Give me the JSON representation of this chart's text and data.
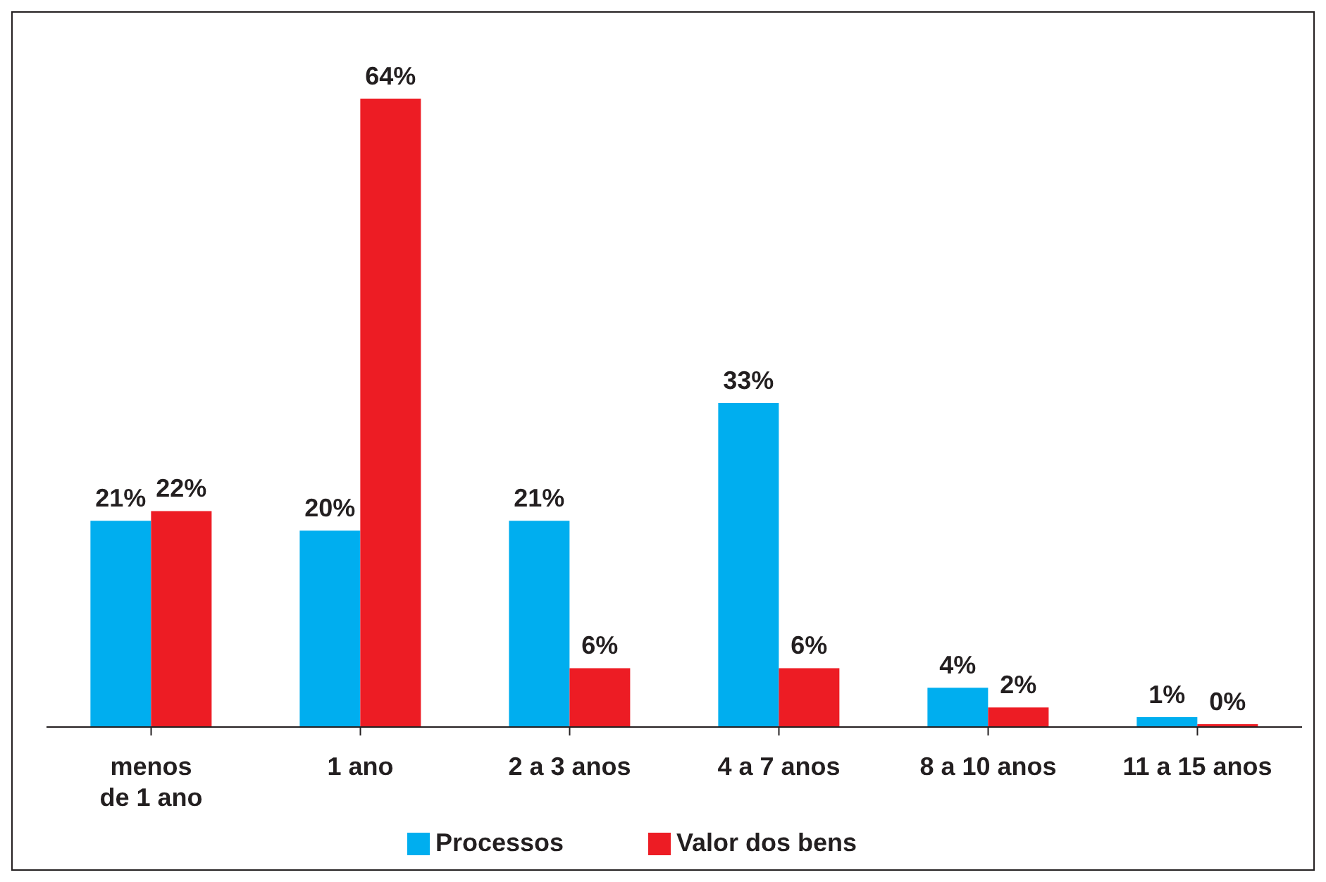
{
  "chart_data": {
    "type": "bar",
    "categories": [
      "menos de 1 ano",
      "1 ano",
      "2 a 3 anos",
      "4 a 7 anos",
      "8 a 10 anos",
      "11 a 15 anos"
    ],
    "series": [
      {
        "name": "Processos",
        "color": "#00aeef",
        "values": [
          21,
          20,
          21,
          33,
          4,
          1
        ],
        "value_labels": [
          "21%",
          "20%",
          "21%",
          "33%",
          "4%",
          "1%"
        ]
      },
      {
        "name": "Valor dos bens",
        "color": "#ed1c24",
        "values": [
          22,
          64,
          6,
          6,
          2,
          0
        ],
        "value_labels": [
          "22%",
          "64%",
          "6%",
          "6%",
          "2%",
          "0%"
        ]
      }
    ],
    "tick_labels": "x",
    "legend": "bottom"
  }
}
